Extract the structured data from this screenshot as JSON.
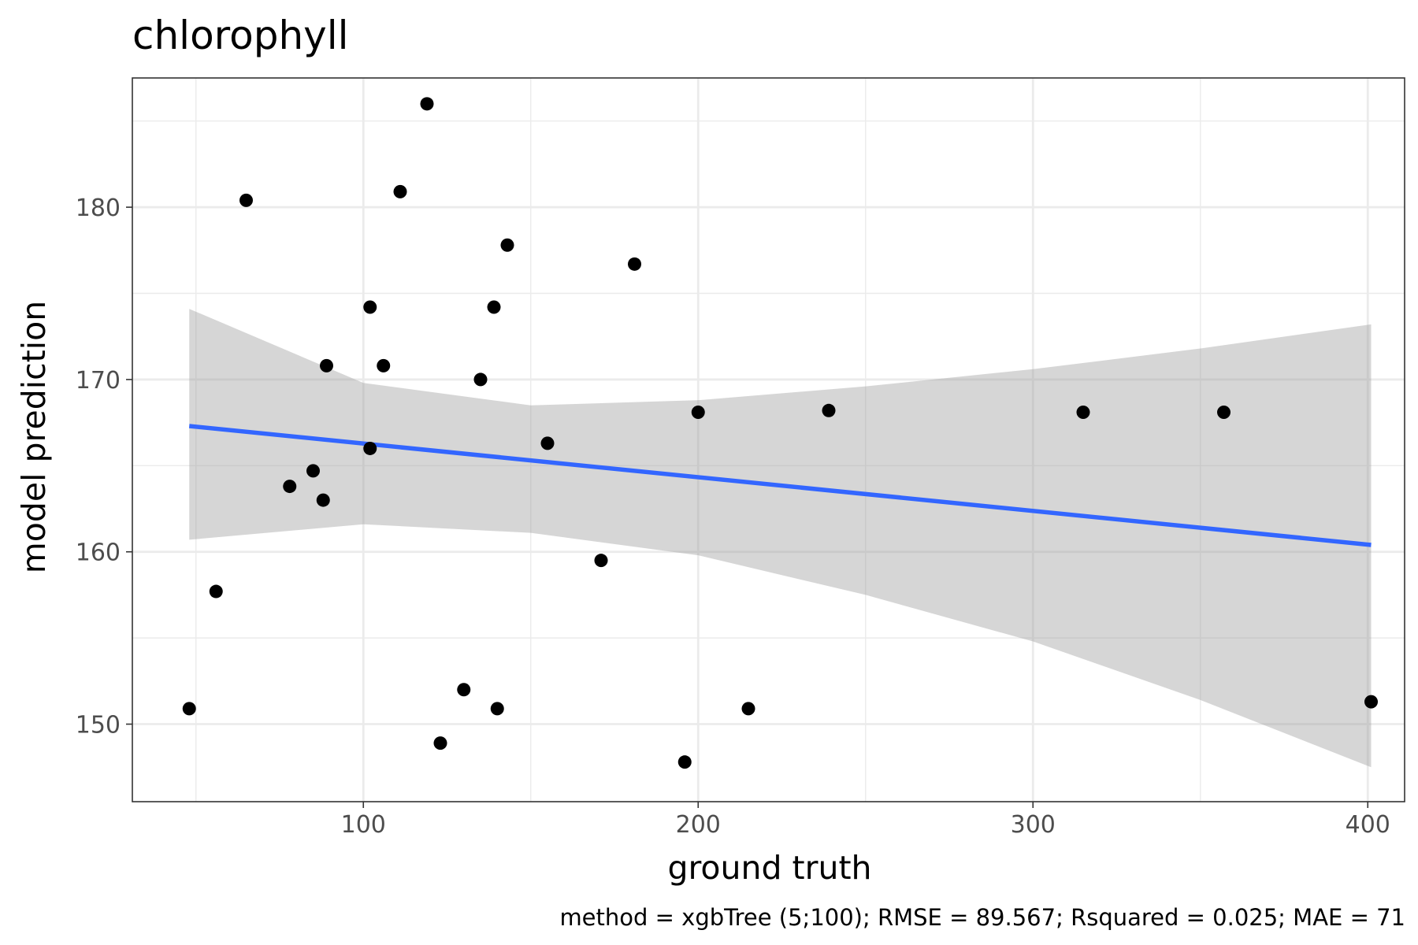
{
  "chart_data": {
    "type": "scatter",
    "title": "chlorophyll",
    "xlabel": "ground truth",
    "ylabel": "model prediction",
    "caption": "method = xgbTree (5;100); RMSE = 89.567; Rsquared = 0.025; MAE = 71",
    "xlim": [
      31,
      411
    ],
    "ylim": [
      145.5,
      187.5
    ],
    "x_ticks": [
      100,
      200,
      300,
      400
    ],
    "y_ticks": [
      150,
      160,
      170,
      180
    ],
    "x_tick_labels": [
      "100",
      "200",
      "300",
      "400"
    ],
    "y_tick_labels": [
      "150",
      "160",
      "170",
      "180"
    ],
    "grid": true,
    "points": [
      {
        "x": 48,
        "y": 150.9
      },
      {
        "x": 56,
        "y": 157.7
      },
      {
        "x": 65,
        "y": 180.4
      },
      {
        "x": 78,
        "y": 163.8
      },
      {
        "x": 85,
        "y": 164.7
      },
      {
        "x": 88,
        "y": 163.0
      },
      {
        "x": 89,
        "y": 170.8
      },
      {
        "x": 102,
        "y": 166.0
      },
      {
        "x": 102,
        "y": 174.2
      },
      {
        "x": 106,
        "y": 170.8
      },
      {
        "x": 111,
        "y": 180.9
      },
      {
        "x": 119,
        "y": 186.0
      },
      {
        "x": 123,
        "y": 148.9
      },
      {
        "x": 130,
        "y": 152.0
      },
      {
        "x": 135,
        "y": 170.0
      },
      {
        "x": 139,
        "y": 174.2
      },
      {
        "x": 140,
        "y": 150.9
      },
      {
        "x": 143,
        "y": 177.8
      },
      {
        "x": 155,
        "y": 166.3
      },
      {
        "x": 171,
        "y": 159.5
      },
      {
        "x": 181,
        "y": 176.7
      },
      {
        "x": 196,
        "y": 147.8
      },
      {
        "x": 200,
        "y": 168.1
      },
      {
        "x": 215,
        "y": 150.9
      },
      {
        "x": 239,
        "y": 168.2
      },
      {
        "x": 315,
        "y": 168.1
      },
      {
        "x": 357,
        "y": 168.1
      },
      {
        "x": 401,
        "y": 151.3
      }
    ],
    "trend_line": {
      "x": [
        48,
        401
      ],
      "y": [
        167.3,
        160.4
      ]
    },
    "confidence_band": {
      "x": [
        48,
        100,
        150,
        200,
        250,
        300,
        350,
        401
      ],
      "upper": [
        174.1,
        169.8,
        168.5,
        168.8,
        169.6,
        170.6,
        171.8,
        173.2
      ],
      "lower": [
        160.7,
        161.6,
        161.1,
        159.8,
        157.5,
        154.8,
        151.4,
        147.5
      ]
    },
    "colors": {
      "points": "#000000",
      "trend_line": "#3366ff",
      "band": "#999999",
      "grid": "#ebebeb",
      "panel_border": "#333333",
      "tick_text": "#4d4d4d"
    }
  }
}
